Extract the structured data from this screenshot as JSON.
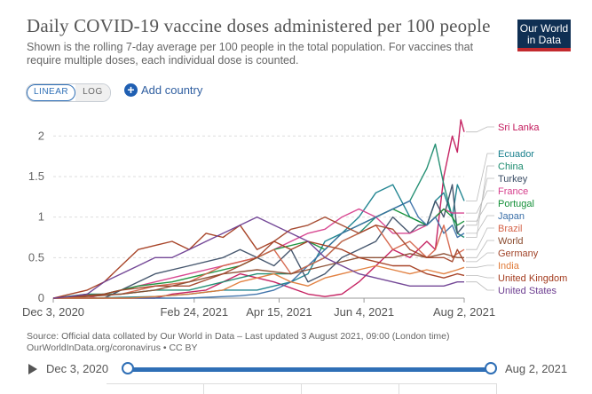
{
  "header": {
    "title": "Daily COVID-19 vaccine doses administered per 100 people",
    "subtitle": "Shown is the rolling 7-day average per 100 people in the total population. For vaccines that require multiple doses, each individual dose is counted."
  },
  "logo": {
    "line1": "Our World",
    "line2": "in Data"
  },
  "scale_toggle": {
    "linear": "LINEAR",
    "log": "LOG",
    "selected": "linear"
  },
  "add_country_label": "Add country",
  "footer": {
    "source_line1": "Source: Official data collated by Our World in Data – Last updated 3 August 2021, 09:00 (London time)",
    "source_line2": "OurWorldInData.org/coronavirus • CC BY"
  },
  "timeline": {
    "start": "Dec 3, 2020",
    "end": "Aug 2, 2021"
  },
  "colors": {
    "accent": "#2f6fb6",
    "logo_bg": "#0f2f53",
    "logo_bar": "#c32a2e"
  },
  "chart_data": {
    "type": "line",
    "title": "Daily COVID-19 vaccine doses administered per 100 people",
    "ylim": [
      0,
      2.2
    ],
    "y_ticks": [
      "0",
      "0.5",
      "1",
      "1.5",
      "2"
    ],
    "x_ticks": [
      "Dec 3, 2020",
      "Feb 24, 2021",
      "Apr 15, 2021",
      "Jun 4, 2021",
      "Aug 2, 2021"
    ],
    "x_tick_days": [
      0,
      83,
      133,
      183,
      242
    ],
    "grid": "horizontal dashed",
    "legend": "right, end-of-line labels",
    "series": [
      {
        "name": "Sri Lanka",
        "color": "#c2185b",
        "x": [
          0,
          60,
          70,
          90,
          110,
          130,
          150,
          160,
          170,
          180,
          190,
          200,
          210,
          220,
          225,
          230,
          235,
          238,
          240,
          242
        ],
        "y": [
          0,
          0,
          0.05,
          0.1,
          0.3,
          0.2,
          0.05,
          0.02,
          0.05,
          0.2,
          0.4,
          0.6,
          0.5,
          0.7,
          0.6,
          1.5,
          2.0,
          1.8,
          2.2,
          2.05
        ]
      },
      {
        "name": "Ecuador",
        "color": "#177f8c",
        "x": [
          0,
          20,
          40,
          60,
          80,
          100,
          120,
          140,
          150,
          160,
          170,
          180,
          190,
          200,
          210,
          220,
          225,
          230,
          235,
          238,
          242
        ],
        "y": [
          0,
          0,
          0.01,
          0.02,
          0.05,
          0.1,
          0.1,
          0.2,
          0.3,
          0.7,
          0.8,
          1.0,
          1.3,
          1.4,
          1.0,
          0.9,
          1.2,
          1.3,
          1.0,
          1.4,
          1.2
        ]
      },
      {
        "name": "China",
        "color": "#1a8a6d",
        "x": [
          0,
          20,
          40,
          60,
          80,
          100,
          120,
          140,
          160,
          170,
          180,
          190,
          200,
          210,
          220,
          225,
          230,
          235,
          238,
          242
        ],
        "y": [
          0,
          0.05,
          0.05,
          0.1,
          0.1,
          0.2,
          0.3,
          0.3,
          0.5,
          0.7,
          0.8,
          1.0,
          1.1,
          1.2,
          1.6,
          1.9,
          1.4,
          1.0,
          0.8,
          0.75
        ]
      },
      {
        "name": "Turkey",
        "color": "#3c4e66",
        "x": [
          0,
          30,
          40,
          60,
          80,
          100,
          110,
          120,
          130,
          140,
          150,
          160,
          170,
          180,
          190,
          200,
          210,
          215,
          220,
          225,
          230,
          235,
          238,
          242
        ],
        "y": [
          0,
          0,
          0.1,
          0.3,
          0.4,
          0.5,
          0.6,
          0.5,
          0.4,
          0.6,
          0.2,
          0.3,
          0.5,
          0.6,
          0.7,
          1.0,
          0.8,
          0.9,
          0.9,
          1.2,
          1.0,
          1.4,
          0.8,
          0.9
        ]
      },
      {
        "name": "France",
        "color": "#d63f8c",
        "x": [
          0,
          20,
          30,
          40,
          60,
          80,
          100,
          120,
          130,
          140,
          150,
          160,
          170,
          180,
          190,
          200,
          210,
          220,
          225,
          230,
          235,
          238,
          242
        ],
        "y": [
          0,
          0,
          0.05,
          0.1,
          0.2,
          0.3,
          0.4,
          0.5,
          0.6,
          0.7,
          0.8,
          0.85,
          1.0,
          1.1,
          1.0,
          0.8,
          0.8,
          0.9,
          1.0,
          1.1,
          1.05,
          1.05,
          1.05
        ]
      },
      {
        "name": "Portugal",
        "color": "#138f37",
        "x": [
          0,
          30,
          50,
          70,
          90,
          110,
          130,
          150,
          160,
          170,
          180,
          190,
          200,
          210,
          220,
          230,
          235,
          238,
          242
        ],
        "y": [
          0,
          0.05,
          0.15,
          0.2,
          0.3,
          0.4,
          0.6,
          0.7,
          0.6,
          0.8,
          0.9,
          1.0,
          1.1,
          1.0,
          0.9,
          1.1,
          1.0,
          0.9,
          0.95
        ]
      },
      {
        "name": "Japan",
        "color": "#3a6fa8",
        "x": [
          0,
          80,
          90,
          110,
          120,
          130,
          140,
          150,
          160,
          170,
          180,
          190,
          200,
          210,
          215,
          220,
          225,
          230,
          235,
          238,
          242
        ],
        "y": [
          0,
          0,
          0.01,
          0.03,
          0.05,
          0.1,
          0.2,
          0.4,
          0.6,
          0.8,
          0.9,
          1.0,
          1.1,
          1.2,
          1.0,
          0.9,
          1.0,
          0.8,
          0.9,
          0.75,
          0.8
        ]
      },
      {
        "name": "Brazil",
        "color": "#d5644a",
        "x": [
          0,
          40,
          50,
          60,
          80,
          100,
          120,
          130,
          140,
          150,
          160,
          170,
          180,
          190,
          200,
          210,
          220,
          225,
          230,
          235,
          238,
          242
        ],
        "y": [
          0,
          0.05,
          0.1,
          0.15,
          0.2,
          0.4,
          0.5,
          0.6,
          0.3,
          0.4,
          0.5,
          0.7,
          0.8,
          0.9,
          0.6,
          0.7,
          0.5,
          0.6,
          0.9,
          0.5,
          0.55,
          0.6
        ]
      },
      {
        "name": "World",
        "color": "#8a4b2e",
        "x": [
          0,
          20,
          40,
          60,
          80,
          100,
          120,
          140,
          160,
          180,
          200,
          210,
          220,
          230,
          238,
          242
        ],
        "y": [
          0,
          0.02,
          0.05,
          0.1,
          0.2,
          0.3,
          0.35,
          0.3,
          0.4,
          0.5,
          0.5,
          0.55,
          0.5,
          0.55,
          0.5,
          0.5
        ]
      },
      {
        "name": "Germany",
        "color": "#a2452a",
        "x": [
          0,
          30,
          40,
          60,
          80,
          100,
          110,
          120,
          130,
          140,
          150,
          160,
          170,
          180,
          190,
          200,
          210,
          220,
          230,
          235,
          238,
          242
        ],
        "y": [
          0,
          0.05,
          0.1,
          0.15,
          0.15,
          0.3,
          0.4,
          0.5,
          0.7,
          0.85,
          0.9,
          1.0,
          0.9,
          0.8,
          0.9,
          0.85,
          0.6,
          0.5,
          0.5,
          0.45,
          0.6,
          0.45
        ]
      },
      {
        "name": "India",
        "color": "#e07b39",
        "x": [
          0,
          45,
          60,
          80,
          100,
          110,
          120,
          130,
          140,
          150,
          160,
          170,
          180,
          190,
          200,
          210,
          220,
          230,
          238,
          242
        ],
        "y": [
          0,
          0,
          0.02,
          0.05,
          0.1,
          0.2,
          0.25,
          0.3,
          0.2,
          0.15,
          0.25,
          0.3,
          0.35,
          0.4,
          0.35,
          0.3,
          0.35,
          0.3,
          0.35,
          0.38
        ]
      },
      {
        "name": "United Kingdom",
        "color": "#a33b1e",
        "x": [
          0,
          10,
          20,
          30,
          40,
          50,
          60,
          70,
          80,
          90,
          100,
          110,
          120,
          130,
          140,
          150,
          160,
          170,
          180,
          190,
          200,
          210,
          220,
          230,
          238,
          242
        ],
        "y": [
          0,
          0.05,
          0.1,
          0.2,
          0.4,
          0.6,
          0.65,
          0.7,
          0.6,
          0.8,
          0.75,
          0.9,
          0.6,
          0.7,
          0.6,
          0.7,
          0.65,
          0.6,
          0.5,
          0.45,
          0.4,
          0.4,
          0.3,
          0.25,
          0.3,
          0.28
        ]
      },
      {
        "name": "United States",
        "color": "#6d3e91",
        "x": [
          0,
          10,
          20,
          30,
          40,
          50,
          60,
          70,
          80,
          90,
          100,
          110,
          120,
          130,
          140,
          150,
          160,
          170,
          180,
          190,
          200,
          210,
          220,
          230,
          238,
          242
        ],
        "y": [
          0,
          0.02,
          0.05,
          0.2,
          0.3,
          0.4,
          0.5,
          0.5,
          0.6,
          0.7,
          0.8,
          0.9,
          1.0,
          0.9,
          0.8,
          0.7,
          0.5,
          0.4,
          0.3,
          0.25,
          0.2,
          0.15,
          0.15,
          0.15,
          0.2,
          0.2
        ]
      }
    ]
  }
}
